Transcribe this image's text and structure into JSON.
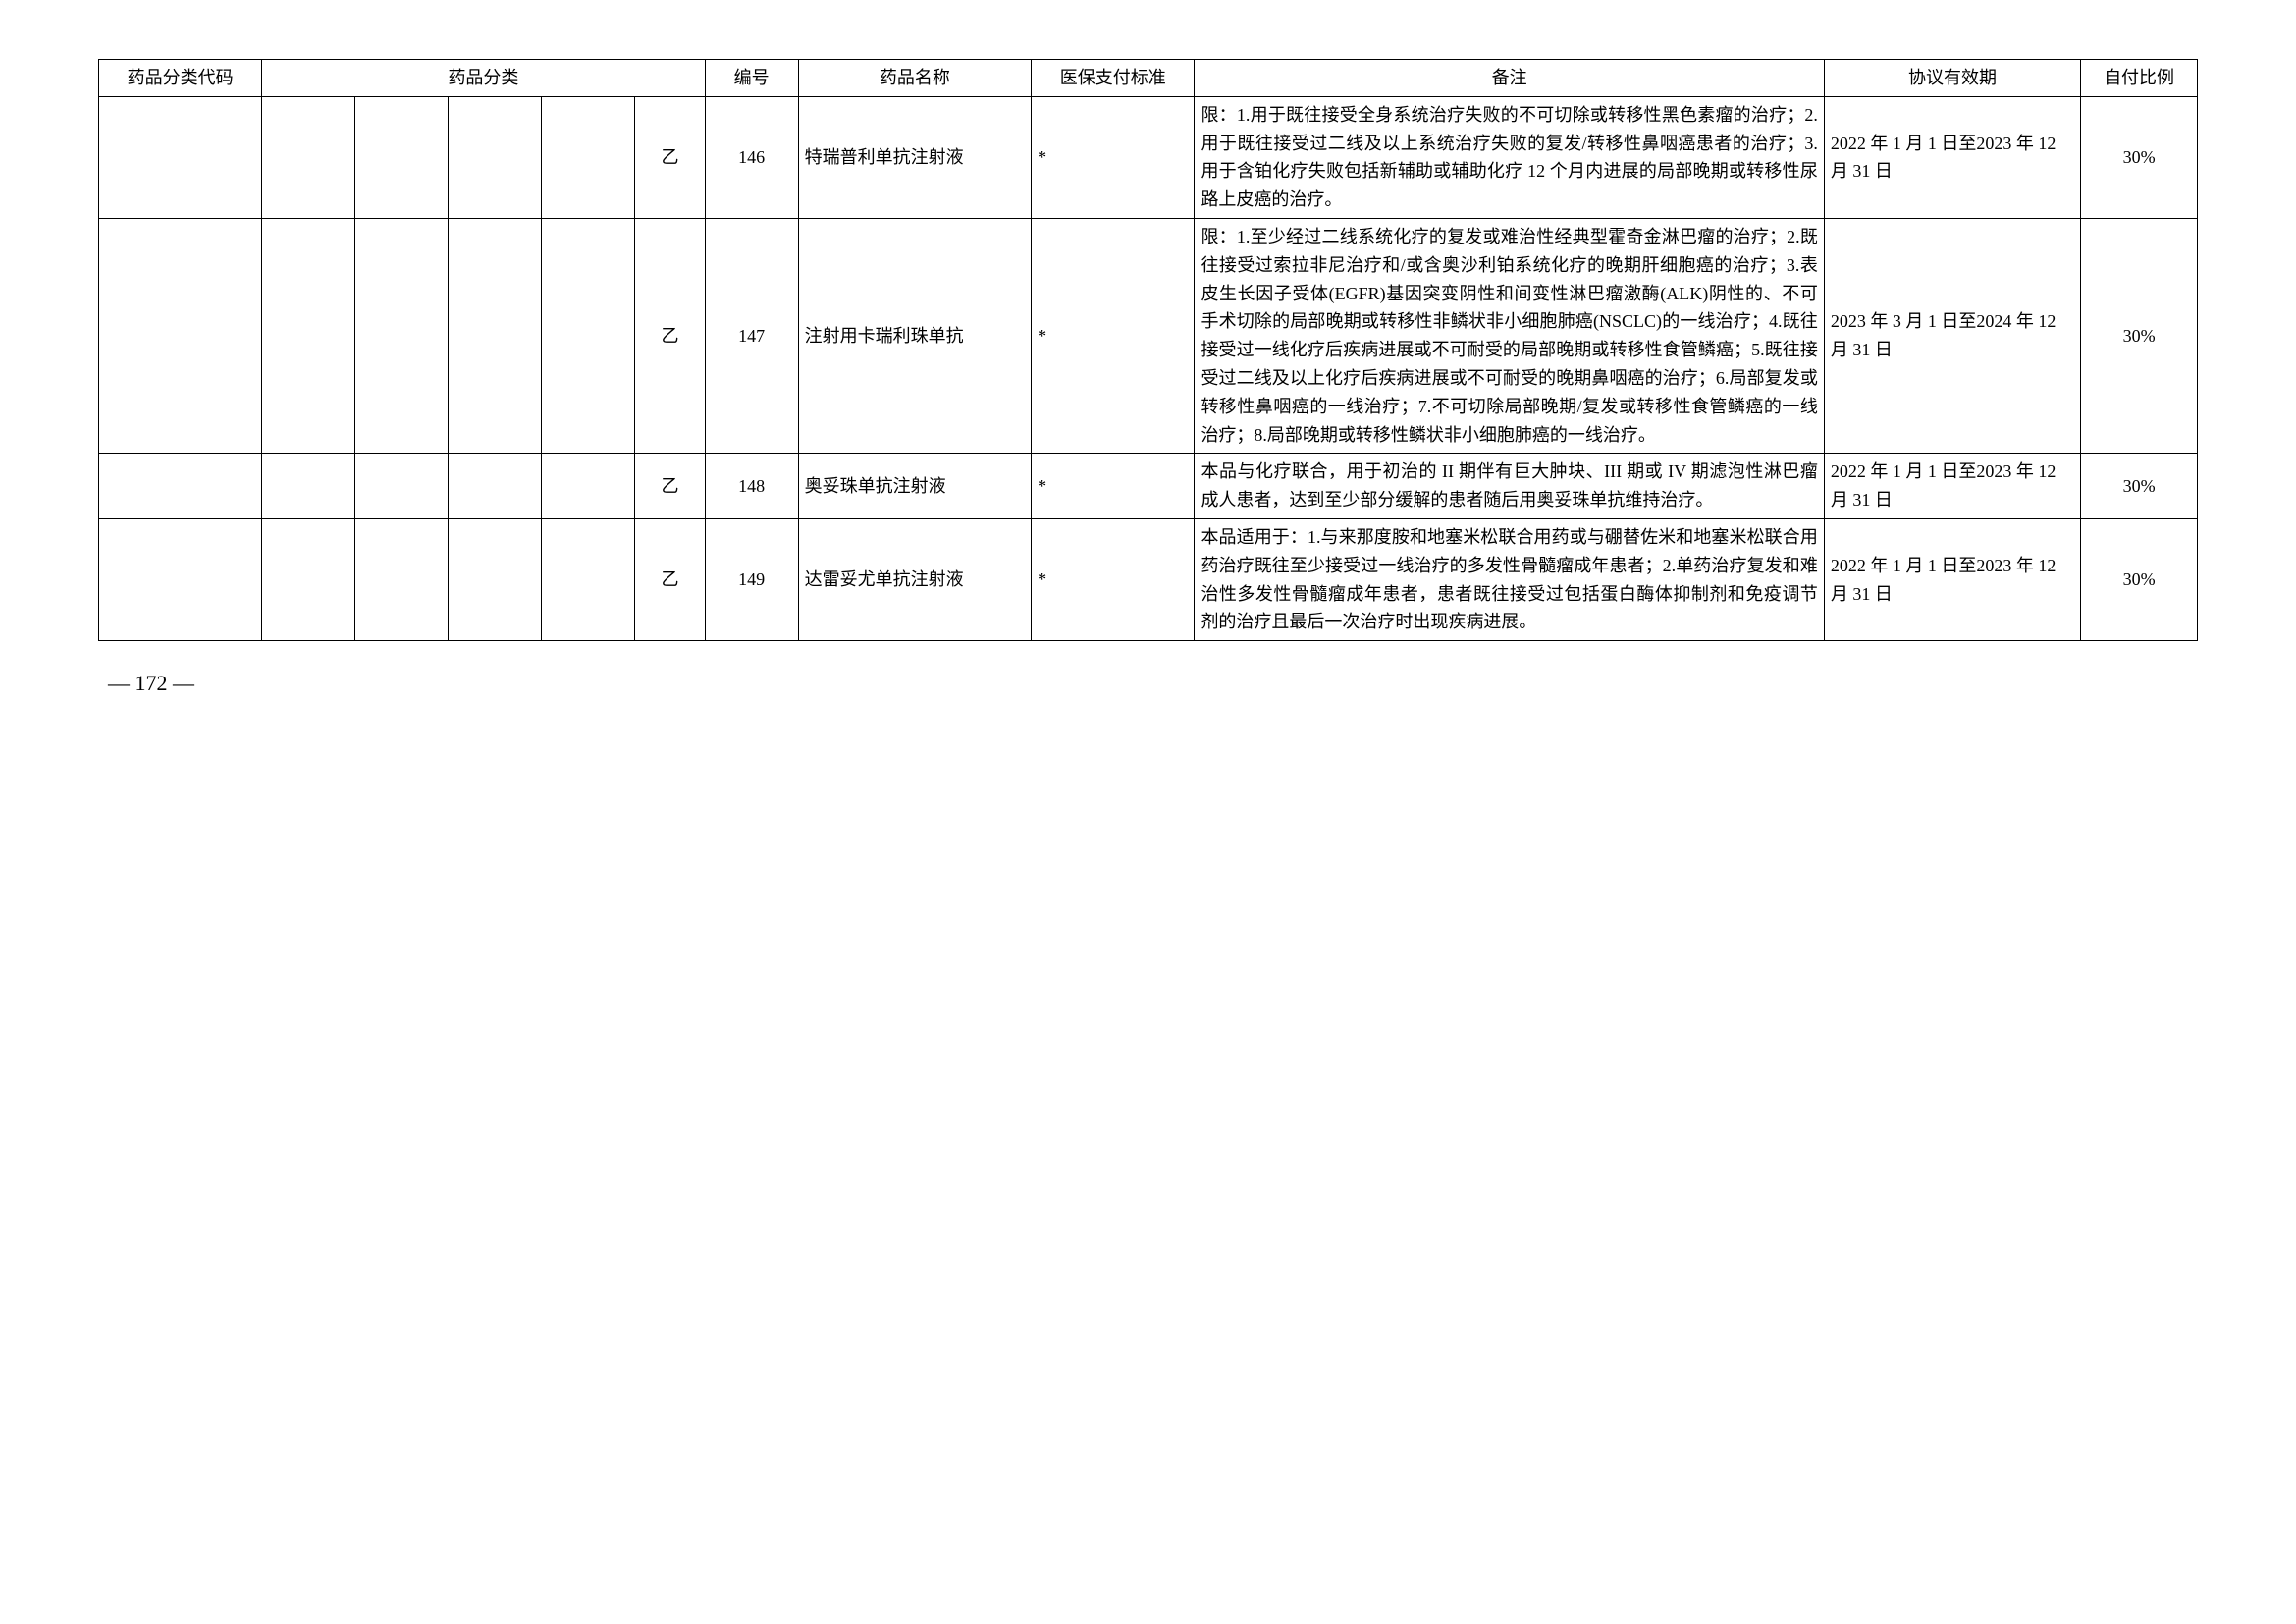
{
  "headers": {
    "code": "药品分类代码",
    "category": "药品分类",
    "seq": "编号",
    "name": "药品名称",
    "pay": "医保支付标准",
    "note": "备注",
    "valid": "协议有效期",
    "self": "自付比例"
  },
  "rows": [
    {
      "cat5": "乙",
      "seq": "146",
      "name": "特瑞普利单抗注射液",
      "pay": "*",
      "note": "限：1.用于既往接受全身系统治疗失败的不可切除或转移性黑色素瘤的治疗；2.用于既往接受过二线及以上系统治疗失败的复发/转移性鼻咽癌患者的治疗；3.用于含铂化疗失败包括新辅助或辅助化疗 12 个月内进展的局部晚期或转移性尿路上皮癌的治疗。",
      "valid": "2022 年 1 月 1 日至2023 年 12 月 31 日",
      "self": "30%"
    },
    {
      "cat5": "乙",
      "seq": "147",
      "name": "注射用卡瑞利珠单抗",
      "pay": "*",
      "note": "限：1.至少经过二线系统化疗的复发或难治性经典型霍奇金淋巴瘤的治疗；2.既往接受过索拉非尼治疗和/或含奥沙利铂系统化疗的晚期肝细胞癌的治疗；3.表皮生长因子受体(EGFR)基因突变阴性和间变性淋巴瘤激酶(ALK)阴性的、不可手术切除的局部晚期或转移性非鳞状非小细胞肺癌(NSCLC)的一线治疗；4.既往接受过一线化疗后疾病进展或不可耐受的局部晚期或转移性食管鳞癌；5.既往接受过二线及以上化疗后疾病进展或不可耐受的晚期鼻咽癌的治疗；6.局部复发或转移性鼻咽癌的一线治疗；7.不可切除局部晚期/复发或转移性食管鳞癌的一线治疗；8.局部晚期或转移性鳞状非小细胞肺癌的一线治疗。",
      "valid": "2023 年 3 月 1 日至2024 年 12 月 31 日",
      "self": "30%"
    },
    {
      "cat5": "乙",
      "seq": "148",
      "name": "奥妥珠单抗注射液",
      "pay": "*",
      "note": "本品与化疗联合，用于初治的 II 期伴有巨大肿块、III 期或 IV 期滤泡性淋巴瘤成人患者，达到至少部分缓解的患者随后用奥妥珠单抗维持治疗。",
      "valid": "2022 年 1 月 1 日至2023 年 12 月 31 日",
      "self": "30%"
    },
    {
      "cat5": "乙",
      "seq": "149",
      "name": "达雷妥尤单抗注射液",
      "pay": "*",
      "note": "本品适用于：1.与来那度胺和地塞米松联合用药或与硼替佐米和地塞米松联合用药治疗既往至少接受过一线治疗的多发性骨髓瘤成年患者；2.单药治疗复发和难治性多发性骨髓瘤成年患者，患者既往接受过包括蛋白酶体抑制剂和免疫调节剂的治疗且最后一次治疗时出现疾病进展。",
      "valid": "2022 年 1 月 1 日至2023 年 12 月 31 日",
      "self": "30%"
    }
  ],
  "pageNumber": "— 172 —"
}
